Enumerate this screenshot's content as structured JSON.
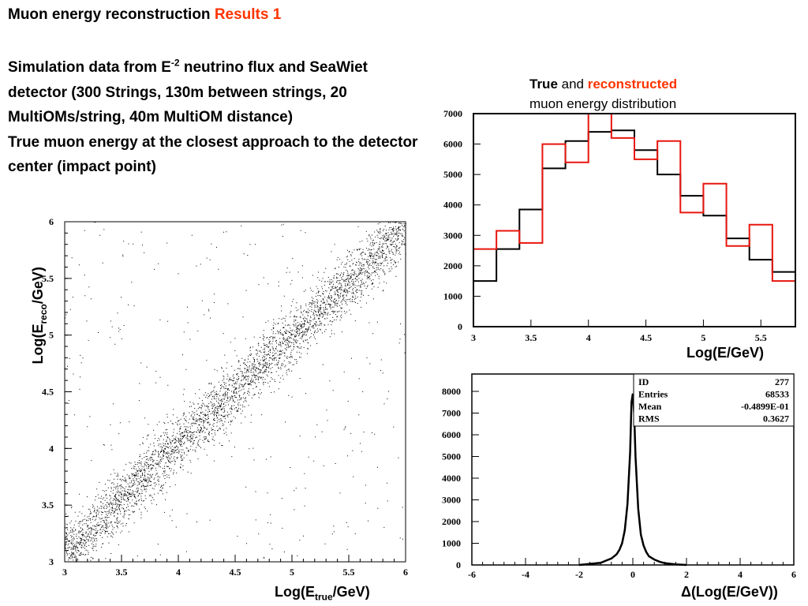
{
  "header": {
    "title_main": "Muon energy reconstruction ",
    "title_accent": "Results 1",
    "desc_part1": "Simulation data from E",
    "desc_sup": "-2",
    "desc_part2": " neutrino flux and SeaWiet detector (300 Strings, 130m between strings, 20 MultiOMs/string, 40m MultiOM distance)",
    "desc_line2": "True muon energy at the closest approach to the detector center (impact point)"
  },
  "hist_caption": {
    "true_word": "True",
    "and_word": " and ",
    "reco_word": "reconstructed",
    "line2": "muon energy distribution"
  },
  "colors": {
    "accent": "#ff3300",
    "true_line": "#000000",
    "reco_line": "#e8160e"
  },
  "labels": {
    "scatter_x_prefix": "Log(E",
    "scatter_x_sub": "true",
    "scatter_x_suffix": "/GeV)",
    "scatter_y_prefix": "Log(E",
    "scatter_y_sub": "reco",
    "scatter_y_suffix": "/GeV)",
    "hist_x": "Log(E/GeV)",
    "delta_x": "Δ(Log(E/GeV))"
  },
  "chart_data": [
    {
      "type": "scatter",
      "xlim": [
        3,
        6
      ],
      "ylim": [
        3,
        6
      ],
      "xticks": [
        "3",
        "3.5",
        "4",
        "4.5",
        "5",
        "5.5",
        "6"
      ],
      "yticks": [
        "3",
        "3.5",
        "4",
        "4.5",
        "5",
        "5.5",
        "6"
      ],
      "trend": {
        "x": [
          3.0,
          3.5,
          4.0,
          4.5,
          5.0,
          5.5,
          6.0
        ],
        "y": [
          3.05,
          3.55,
          4.05,
          4.5,
          5.0,
          5.45,
          5.95
        ]
      },
      "grid": false
    },
    {
      "type": "line",
      "step": true,
      "xlim": [
        3,
        5.8
      ],
      "ylim": [
        0,
        7000
      ],
      "xticks": [
        "3",
        "3.5",
        "4",
        "4.5",
        "5",
        "5.5"
      ],
      "yticks": [
        "0",
        "1000",
        "2000",
        "3000",
        "4000",
        "5000",
        "6000",
        "7000"
      ],
      "bin_edges": [
        3.0,
        3.2,
        3.4,
        3.6,
        3.8,
        4.0,
        4.2,
        4.4,
        4.6,
        4.8,
        5.0,
        5.2,
        5.4,
        5.6,
        5.8
      ],
      "series": [
        {
          "name": "True",
          "values": [
            1500,
            2550,
            3850,
            5200,
            6100,
            6400,
            6450,
            5800,
            5000,
            4300,
            3650,
            2900,
            2200,
            1800
          ]
        },
        {
          "name": "reconstructed",
          "values": [
            2550,
            3150,
            2750,
            6000,
            5400,
            7100,
            6200,
            5500,
            6100,
            3750,
            4700,
            2650,
            3350,
            1500
          ]
        }
      ],
      "grid": false
    },
    {
      "type": "line",
      "step": true,
      "xlim": [
        -6,
        6
      ],
      "ylim": [
        0,
        8800
      ],
      "xticks": [
        "-6",
        "-4",
        "-2",
        "0",
        "2",
        "4",
        "6"
      ],
      "yticks": [
        "0",
        "1000",
        "2000",
        "3000",
        "4000",
        "5000",
        "6000",
        "7000",
        "8000"
      ],
      "x": [
        -2.0,
        -1.6,
        -1.2,
        -1.0,
        -0.8,
        -0.6,
        -0.5,
        -0.4,
        -0.3,
        -0.2,
        -0.1,
        -0.05,
        0.0,
        0.05,
        0.1,
        0.2,
        0.3,
        0.4,
        0.5,
        0.6,
        0.8,
        1.0,
        1.2,
        1.6,
        2.0
      ],
      "y": [
        0,
        50,
        100,
        200,
        300,
        500,
        700,
        1000,
        1600,
        2800,
        5200,
        7500,
        7900,
        7000,
        5000,
        2600,
        1400,
        900,
        600,
        400,
        250,
        150,
        80,
        30,
        0
      ],
      "stats": [
        {
          "label": "ID",
          "value": "277"
        },
        {
          "label": "Entries",
          "value": "68533"
        },
        {
          "label": "Mean",
          "value": "-0.4899E-01"
        },
        {
          "label": "RMS",
          "value": "0.3627"
        }
      ],
      "grid": false
    }
  ]
}
